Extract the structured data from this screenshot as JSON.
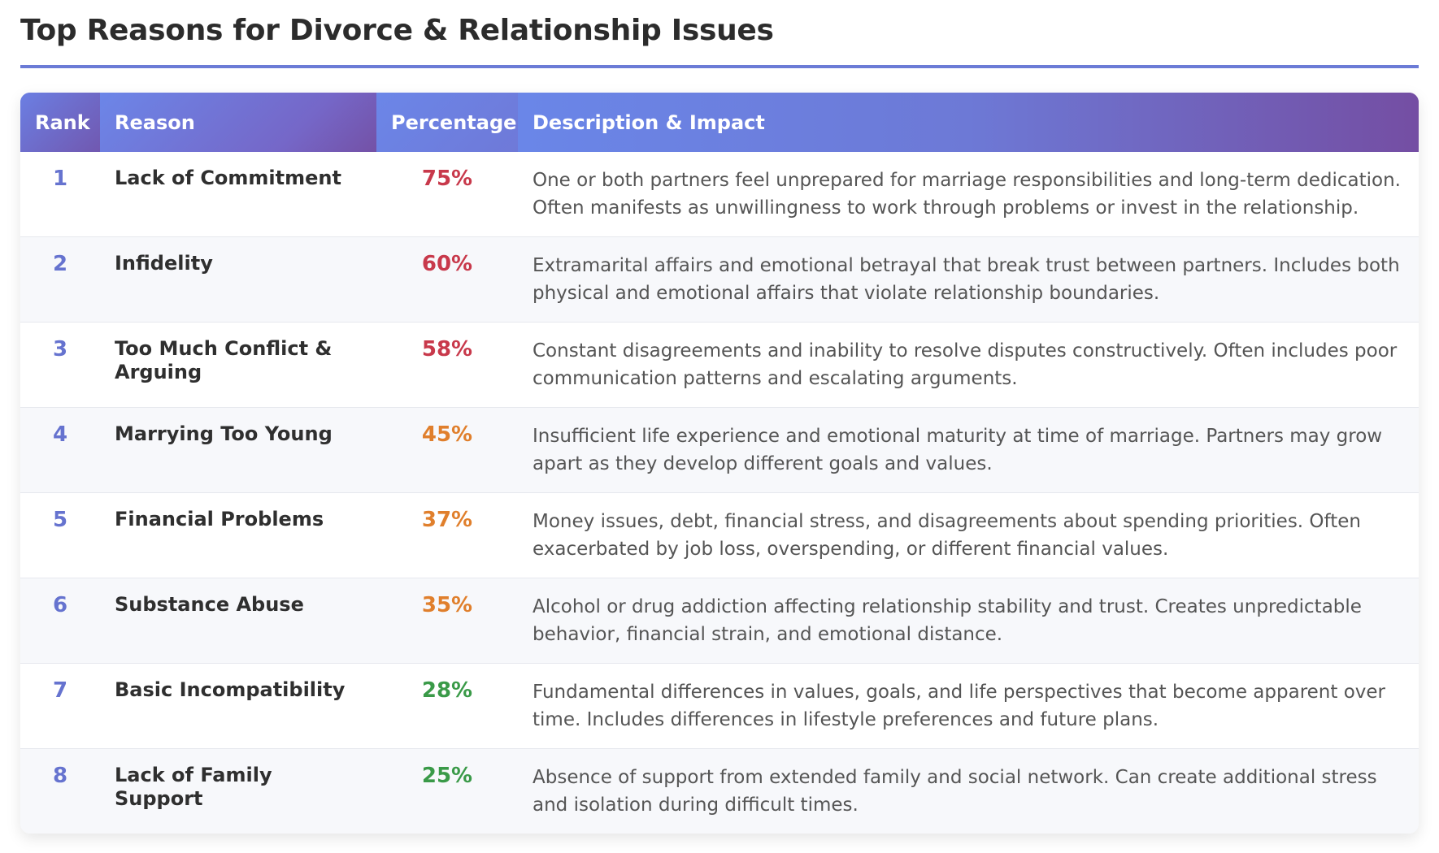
{
  "title": "Top Reasons for Divorce & Relationship Issues",
  "colors": {
    "accent": "#6b7bd6",
    "rank": "#6673cf",
    "high": "#c8394b",
    "medium": "#e07f2c",
    "low": "#3a9a48"
  },
  "table": {
    "headers": {
      "rank": "Rank",
      "reason": "Reason",
      "percentage": "Percentage",
      "description": "Description & Impact"
    },
    "rows": [
      {
        "rank": "1",
        "reason": "Lack of Commitment",
        "percentage": "75%",
        "level": "high",
        "description": "One or both partners feel unprepared for marriage responsibilities and long-term dedication. Often manifests as unwillingness to work through problems or invest in the relationship."
      },
      {
        "rank": "2",
        "reason": "Infidelity",
        "percentage": "60%",
        "level": "high",
        "description": "Extramarital affairs and emotional betrayal that break trust between partners. Includes both physical and emotional affairs that violate relationship boundaries."
      },
      {
        "rank": "3",
        "reason": "Too Much Conflict & Arguing",
        "percentage": "58%",
        "level": "high",
        "description": "Constant disagreements and inability to resolve disputes constructively. Often includes poor communication patterns and escalating arguments."
      },
      {
        "rank": "4",
        "reason": "Marrying Too Young",
        "percentage": "45%",
        "level": "medium",
        "description": "Insufficient life experience and emotional maturity at time of marriage. Partners may grow apart as they develop different goals and values."
      },
      {
        "rank": "5",
        "reason": "Financial Problems",
        "percentage": "37%",
        "level": "medium",
        "description": "Money issues, debt, financial stress, and disagreements about spending priorities. Often exacerbated by job loss, overspending, or different financial values."
      },
      {
        "rank": "6",
        "reason": "Substance Abuse",
        "percentage": "35%",
        "level": "medium",
        "description": "Alcohol or drug addiction affecting relationship stability and trust. Creates unpredictable behavior, financial strain, and emotional distance."
      },
      {
        "rank": "7",
        "reason": "Basic Incompatibility",
        "percentage": "28%",
        "level": "low",
        "description": "Fundamental differences in values, goals, and life perspectives that become apparent over time. Includes differences in lifestyle preferences and future plans."
      },
      {
        "rank": "8",
        "reason": "Lack of Family Support",
        "percentage": "25%",
        "level": "low",
        "description": "Absence of support from extended family and social network. Can create additional stress and isolation during difficult times."
      }
    ]
  }
}
